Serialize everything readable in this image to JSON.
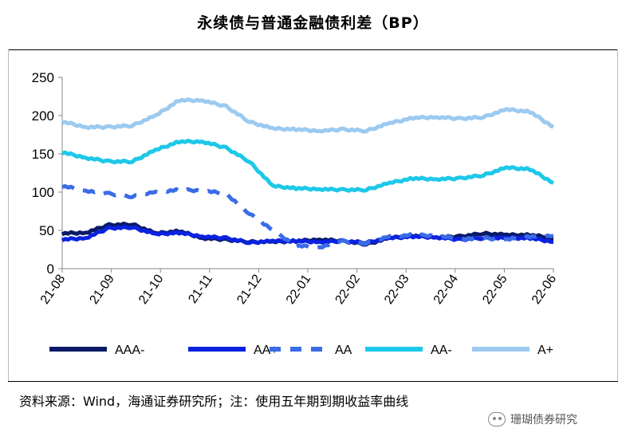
{
  "header": {
    "title": "永续债与普通金融债利差（BP）"
  },
  "footer": {
    "source": "资料来源：Wind，海通证券研究所；注：使用五年期到期收益率曲线"
  },
  "watermark": {
    "text": "珊瑚债券研究",
    "icon": "wechat-icon"
  },
  "chart_data": {
    "type": "line",
    "title": "永续债与普通金融债利差（BP）",
    "xlabel": "",
    "ylabel": "",
    "ylim": [
      0,
      250
    ],
    "yticks": [
      "0",
      "50",
      "100",
      "150",
      "200",
      "250"
    ],
    "categories": [
      "21-08",
      "21-09",
      "21-10",
      "21-11",
      "21-12",
      "22-01",
      "22-02",
      "22-03",
      "22-04",
      "22-05",
      "22-06"
    ],
    "x": [
      "21-08",
      "21-08b",
      "21-09",
      "21-09b",
      "21-10",
      "21-10b",
      "21-11",
      "21-11b",
      "21-12",
      "21-12b",
      "22-01",
      "22-01b",
      "22-02",
      "22-02b",
      "22-03",
      "22-03b",
      "22-04",
      "22-04b",
      "22-05",
      "22-05b",
      "22-06",
      "22-06b"
    ],
    "grid": false,
    "legend": "bottom",
    "series": [
      {
        "name": "AAA-",
        "color": "#0a1a66",
        "dash": "solid",
        "values": [
          46,
          47,
          57,
          58,
          46,
          49,
          40,
          38,
          35,
          35,
          36,
          38,
          36,
          32,
          40,
          43,
          41,
          42,
          46,
          44,
          44,
          40
        ]
      },
      {
        "name": "AA+",
        "color": "#0a22e0",
        "dash": "solid",
        "values": [
          38,
          40,
          53,
          54,
          45,
          47,
          42,
          40,
          34,
          36,
          36,
          35,
          36,
          34,
          40,
          42,
          41,
          38,
          40,
          40,
          40,
          35
        ]
      },
      {
        "name": "AA",
        "color": "#3b6ce8",
        "dash": "dash",
        "values": [
          108,
          102,
          98,
          94,
          100,
          103,
          102,
          98,
          72,
          50,
          30,
          28,
          36,
          33,
          42,
          44,
          43,
          39,
          40,
          38,
          42,
          43
        ]
      },
      {
        "name": "AA-",
        "color": "#1ec8e8",
        "dash": "solid",
        "values": [
          152,
          145,
          140,
          140,
          155,
          166,
          166,
          158,
          140,
          108,
          105,
          104,
          103,
          103,
          112,
          118,
          117,
          118,
          122,
          132,
          130,
          112
        ]
      },
      {
        "name": "A+",
        "color": "#9ccaf0",
        "dash": "solid",
        "values": [
          192,
          185,
          185,
          187,
          200,
          220,
          220,
          212,
          192,
          183,
          182,
          180,
          182,
          180,
          190,
          197,
          198,
          196,
          198,
          208,
          205,
          185
        ]
      }
    ]
  }
}
